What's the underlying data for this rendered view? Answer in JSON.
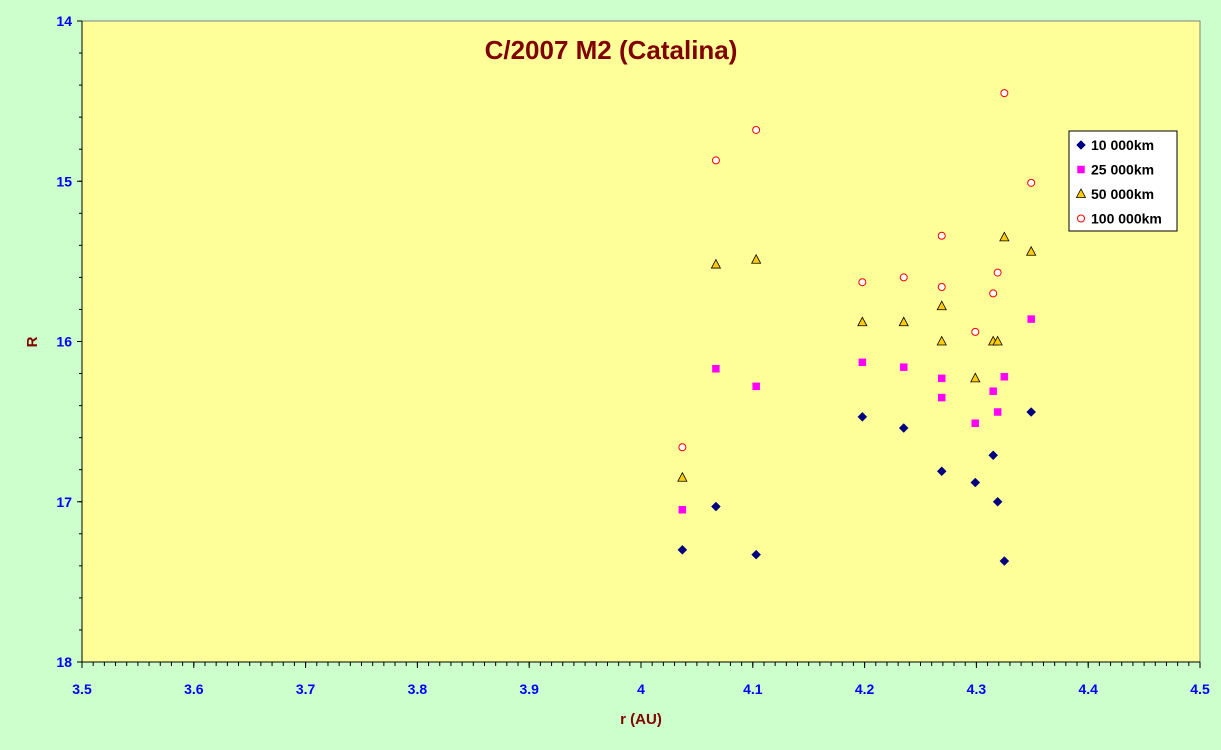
{
  "colors": {
    "background": "#ccffcc",
    "plot_area": "#ffff99",
    "title": "#800000",
    "axis_title": "#800000",
    "tick_labels": "#0000ff"
  },
  "chart_data": {
    "type": "scatter",
    "title": "C/2007 M2 (Catalina)",
    "xlabel": "r (AU)",
    "ylabel": "R",
    "xlim": [
      3.5,
      4.5
    ],
    "ylim": [
      14,
      18
    ],
    "y_reversed": true,
    "x_ticks": [
      "3.5",
      "3.6",
      "3.7",
      "3.8",
      "3.9",
      "4",
      "4.1",
      "4.2",
      "4.3",
      "4.4",
      "4.5"
    ],
    "y_ticks": [
      "14",
      "15",
      "16",
      "17",
      "18"
    ],
    "grid": false,
    "legend_position": "right",
    "series": [
      {
        "name": "10 000km",
        "marker": "diamond",
        "color": "#000080",
        "x": [
          4.037,
          4.067,
          4.103,
          4.198,
          4.235,
          4.269,
          4.299,
          4.315,
          4.319,
          4.325,
          4.349
        ],
        "y": [
          17.3,
          17.03,
          17.33,
          16.47,
          16.54,
          16.81,
          16.88,
          16.71,
          17.0,
          17.37,
          16.44
        ]
      },
      {
        "name": "25 000km",
        "marker": "square",
        "color": "#ff00ff",
        "x": [
          4.037,
          4.067,
          4.103,
          4.198,
          4.235,
          4.269,
          4.269,
          4.299,
          4.315,
          4.319,
          4.325,
          4.349
        ],
        "y": [
          17.05,
          16.17,
          16.28,
          16.13,
          16.16,
          16.23,
          16.35,
          16.51,
          16.31,
          16.44,
          16.22,
          15.86
        ]
      },
      {
        "name": "50 000km",
        "marker": "triangle",
        "color": "#ffcc00",
        "x": [
          4.037,
          4.067,
          4.103,
          4.198,
          4.235,
          4.269,
          4.269,
          4.299,
          4.315,
          4.319,
          4.325,
          4.349
        ],
        "y": [
          16.85,
          15.52,
          15.49,
          15.88,
          15.88,
          15.78,
          16.0,
          16.23,
          16.0,
          16.0,
          15.35,
          15.44
        ]
      },
      {
        "name": "100 000km",
        "marker": "circle",
        "color": "#ff0000",
        "x": [
          4.037,
          4.067,
          4.103,
          4.198,
          4.235,
          4.269,
          4.269,
          4.299,
          4.315,
          4.319,
          4.325,
          4.349
        ],
        "y": [
          16.66,
          14.87,
          14.68,
          15.63,
          15.6,
          15.34,
          15.66,
          15.94,
          15.7,
          15.57,
          14.45,
          15.01
        ]
      }
    ]
  }
}
